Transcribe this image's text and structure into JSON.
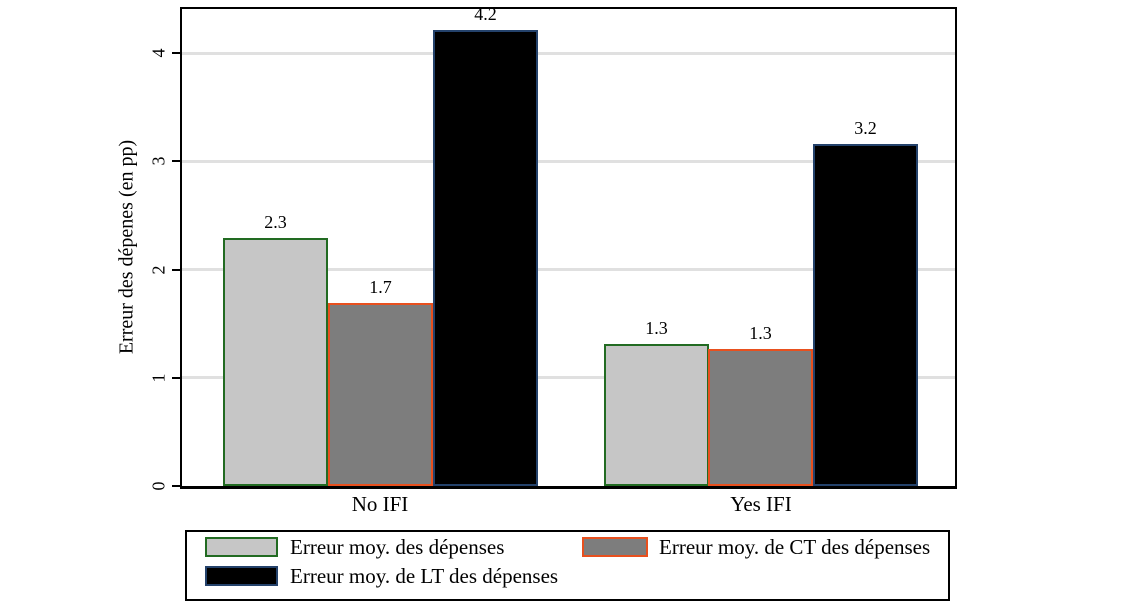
{
  "chart_data": {
    "type": "bar",
    "title": "",
    "xlabel": "",
    "ylabel": "Erreur des dépenes (en pp)",
    "categories": [
      "No IFI",
      "Yes IFI"
    ],
    "series": [
      {
        "name": "Erreur moy. des dépenses",
        "values": [
          2.29,
          1.31
        ],
        "labels": [
          "2.3",
          "1.3"
        ],
        "fill": "#c6c6c6",
        "border_color": "#226b22"
      },
      {
        "name": "Erreur moy. de CT des dépenses",
        "values": [
          1.69,
          1.27
        ],
        "labels": [
          "1.7",
          "1.3"
        ],
        "fill": "#7d7d7d",
        "border_color": "#e8501e"
      },
      {
        "name": "Erreur moy. de LT des dépenses",
        "values": [
          4.21,
          3.16
        ],
        "labels": [
          "4.2",
          "3.2"
        ],
        "fill": "#000000",
        "border_color": "#24426b"
      }
    ],
    "yticks": [
      0,
      1,
      2,
      3,
      4
    ],
    "ylim": [
      0,
      4.4
    ],
    "grid": true,
    "gridline_color": "#e0e0e0",
    "axis_color": "#000000",
    "legend_position": "bottom"
  }
}
